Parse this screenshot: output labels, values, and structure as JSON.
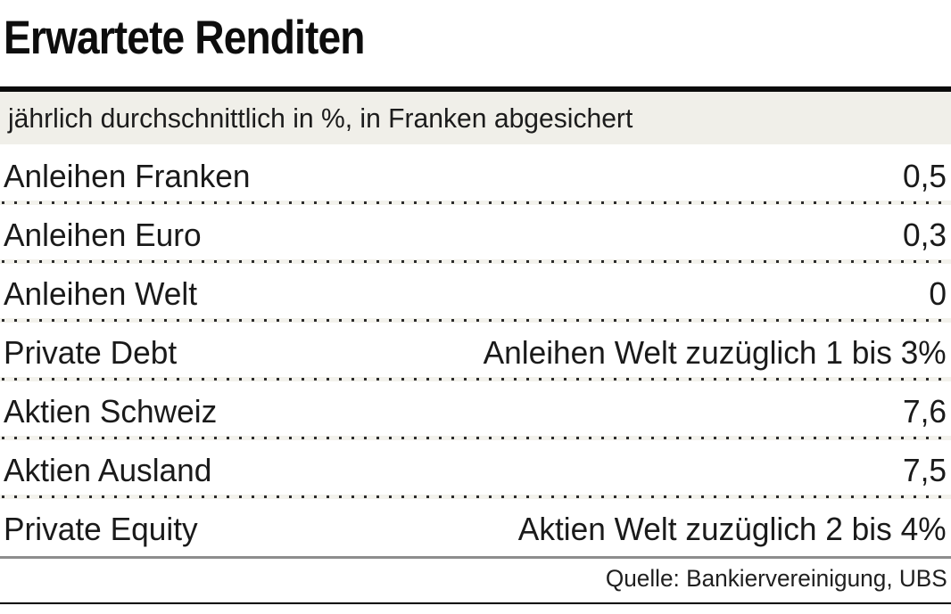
{
  "chart_data": {
    "type": "table",
    "title": "Erwartete Renditen",
    "subtitle": "jährlich durchschnittlich in %, in Franken abgesichert",
    "unit": "% pro Jahr",
    "rows": [
      {
        "label": "Anleihen Franken",
        "value": "0,5"
      },
      {
        "label": "Anleihen Euro",
        "value": "0,3"
      },
      {
        "label": "Anleihen Welt",
        "value": "0"
      },
      {
        "label": "Private Debt",
        "value": "Anleihen Welt zuzüglich 1 bis 3%"
      },
      {
        "label": "Aktien Schweiz",
        "value": "7,6"
      },
      {
        "label": "Aktien Ausland",
        "value": "7,5"
      },
      {
        "label": "Private Equity",
        "value": "Aktien Welt zuzüglich 2 bis 4%"
      }
    ],
    "source": "Quelle: Bankiervereinigung, UBS"
  },
  "colors": {
    "band_bg": "#f0efe9",
    "stripe": "#f3f2ec",
    "dot": "#2b2b2b",
    "rule_black": "#0b0b0b",
    "rule_gray": "#8d8d8d",
    "text": "#1a1a1a"
  }
}
